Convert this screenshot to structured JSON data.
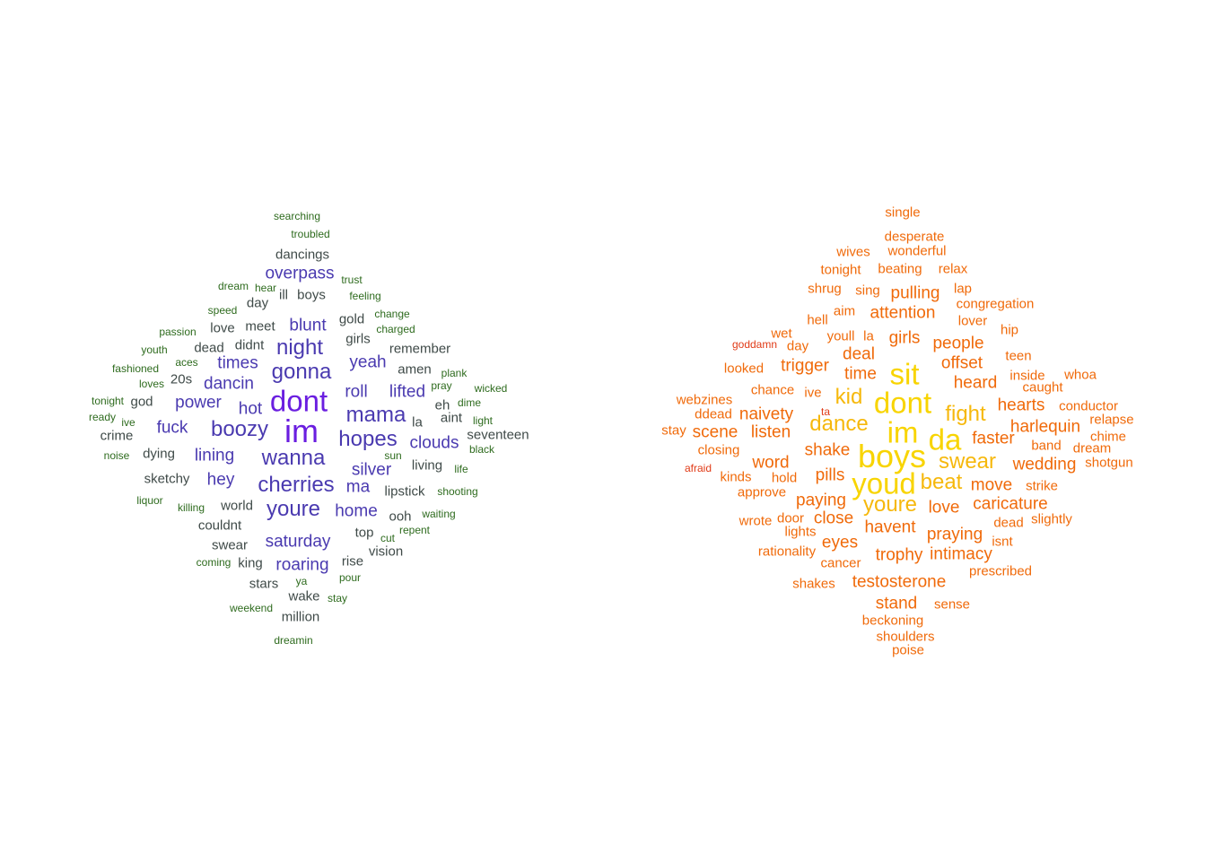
{
  "colors": {
    "background": "#ffffff",
    "left_small": "#2e6b1e",
    "left_medium": "#3f4a48",
    "left_large": "#4a3ab0",
    "left_top": "#6a1ee0",
    "right_small": "#e03a16",
    "right_medium": "#f06a0a",
    "right_large": "#f6b80c",
    "right_top": "#f8d400"
  },
  "clouds": [
    {
      "words": [
        {
          "text": "searching",
          "size": 1
        },
        {
          "text": "troubled",
          "size": 1
        },
        {
          "text": "dancings",
          "size": 2
        },
        {
          "text": "overpass",
          "size": 3
        },
        {
          "text": "trust",
          "size": 1
        },
        {
          "text": "dream",
          "size": 1
        },
        {
          "text": "hear",
          "size": 1
        },
        {
          "text": "ill",
          "size": 2
        },
        {
          "text": "boys",
          "size": 2
        },
        {
          "text": "feeling",
          "size": 1
        },
        {
          "text": "day",
          "size": 2
        },
        {
          "text": "speed",
          "size": 1
        },
        {
          "text": "change",
          "size": 1
        },
        {
          "text": "gold",
          "size": 2
        },
        {
          "text": "charged",
          "size": 1
        },
        {
          "text": "passion",
          "size": 1
        },
        {
          "text": "love",
          "size": 2
        },
        {
          "text": "meet",
          "size": 2
        },
        {
          "text": "blunt",
          "size": 3
        },
        {
          "text": "girls",
          "size": 2
        },
        {
          "text": "youth",
          "size": 1
        },
        {
          "text": "dead",
          "size": 2
        },
        {
          "text": "didnt",
          "size": 2
        },
        {
          "text": "night",
          "size": 4
        },
        {
          "text": "remember",
          "size": 2
        },
        {
          "text": "aces",
          "size": 1
        },
        {
          "text": "yeah",
          "size": 3
        },
        {
          "text": "fashioned",
          "size": 1
        },
        {
          "text": "times",
          "size": 3
        },
        {
          "text": "amen",
          "size": 2
        },
        {
          "text": "plank",
          "size": 1
        },
        {
          "text": "loves",
          "size": 1
        },
        {
          "text": "20s",
          "size": 2
        },
        {
          "text": "gonna",
          "size": 4
        },
        {
          "text": "pray",
          "size": 1
        },
        {
          "text": "wicked",
          "size": 1
        },
        {
          "text": "dancin",
          "size": 3
        },
        {
          "text": "roll",
          "size": 3
        },
        {
          "text": "lifted",
          "size": 3
        },
        {
          "text": "tonight",
          "size": 1
        },
        {
          "text": "god",
          "size": 2
        },
        {
          "text": "dont",
          "size": 5
        },
        {
          "text": "eh",
          "size": 2
        },
        {
          "text": "dime",
          "size": 1
        },
        {
          "text": "power",
          "size": 3
        },
        {
          "text": "hot",
          "size": 3
        },
        {
          "text": "ready",
          "size": 1
        },
        {
          "text": "mama",
          "size": 4
        },
        {
          "text": "la",
          "size": 2
        },
        {
          "text": "aint",
          "size": 2
        },
        {
          "text": "light",
          "size": 1
        },
        {
          "text": "ive",
          "size": 1
        },
        {
          "text": "fuck",
          "size": 3
        },
        {
          "text": "im",
          "size": 6
        },
        {
          "text": "boozy",
          "size": 4
        },
        {
          "text": "crime",
          "size": 2
        },
        {
          "text": "hopes",
          "size": 4
        },
        {
          "text": "seventeen",
          "size": 2
        },
        {
          "text": "clouds",
          "size": 3
        },
        {
          "text": "black",
          "size": 1
        },
        {
          "text": "noise",
          "size": 1
        },
        {
          "text": "dying",
          "size": 2
        },
        {
          "text": "lining",
          "size": 3
        },
        {
          "text": "wanna",
          "size": 4
        },
        {
          "text": "sun",
          "size": 1
        },
        {
          "text": "living",
          "size": 2
        },
        {
          "text": "silver",
          "size": 3
        },
        {
          "text": "life",
          "size": 1
        },
        {
          "text": "sketchy",
          "size": 2
        },
        {
          "text": "hey",
          "size": 3
        },
        {
          "text": "ma",
          "size": 3
        },
        {
          "text": "lipstick",
          "size": 2
        },
        {
          "text": "shooting",
          "size": 1
        },
        {
          "text": "cherries",
          "size": 4
        },
        {
          "text": "liquor",
          "size": 1
        },
        {
          "text": "killing",
          "size": 1
        },
        {
          "text": "world",
          "size": 2
        },
        {
          "text": "youre",
          "size": 4
        },
        {
          "text": "home",
          "size": 3
        },
        {
          "text": "waiting",
          "size": 1
        },
        {
          "text": "ooh",
          "size": 2
        },
        {
          "text": "couldnt",
          "size": 2
        },
        {
          "text": "top",
          "size": 2
        },
        {
          "text": "repent",
          "size": 1
        },
        {
          "text": "cut",
          "size": 1
        },
        {
          "text": "saturday",
          "size": 3
        },
        {
          "text": "swear",
          "size": 2
        },
        {
          "text": "vision",
          "size": 2
        },
        {
          "text": "coming",
          "size": 1
        },
        {
          "text": "king",
          "size": 2
        },
        {
          "text": "roaring",
          "size": 3
        },
        {
          "text": "rise",
          "size": 2
        },
        {
          "text": "ya",
          "size": 1
        },
        {
          "text": "pour",
          "size": 1
        },
        {
          "text": "stars",
          "size": 2
        },
        {
          "text": "wake",
          "size": 2
        },
        {
          "text": "stay",
          "size": 1
        },
        {
          "text": "weekend",
          "size": 1
        },
        {
          "text": "million",
          "size": 2
        },
        {
          "text": "dreamin",
          "size": 1
        }
      ]
    },
    {
      "words": [
        {
          "text": "single",
          "size": 2
        },
        {
          "text": "desperate",
          "size": 2
        },
        {
          "text": "wives",
          "size": 2
        },
        {
          "text": "wonderful",
          "size": 2
        },
        {
          "text": "tonight",
          "size": 2
        },
        {
          "text": "beating",
          "size": 2
        },
        {
          "text": "relax",
          "size": 2
        },
        {
          "text": "shrug",
          "size": 2
        },
        {
          "text": "sing",
          "size": 2
        },
        {
          "text": "pulling",
          "size": 3
        },
        {
          "text": "lap",
          "size": 2
        },
        {
          "text": "congregation",
          "size": 2
        },
        {
          "text": "aim",
          "size": 2
        },
        {
          "text": "attention",
          "size": 3
        },
        {
          "text": "hell",
          "size": 2
        },
        {
          "text": "lover",
          "size": 2
        },
        {
          "text": "wet",
          "size": 2
        },
        {
          "text": "youll",
          "size": 2
        },
        {
          "text": "la",
          "size": 2
        },
        {
          "text": "girls",
          "size": 3
        },
        {
          "text": "hip",
          "size": 2
        },
        {
          "text": "goddamn",
          "size": 1
        },
        {
          "text": "day",
          "size": 2
        },
        {
          "text": "people",
          "size": 3
        },
        {
          "text": "deal",
          "size": 3
        },
        {
          "text": "teen",
          "size": 2
        },
        {
          "text": "offset",
          "size": 3
        },
        {
          "text": "looked",
          "size": 2
        },
        {
          "text": "trigger",
          "size": 3
        },
        {
          "text": "time",
          "size": 3
        },
        {
          "text": "sit",
          "size": 5
        },
        {
          "text": "inside",
          "size": 2
        },
        {
          "text": "whoa",
          "size": 2
        },
        {
          "text": "heard",
          "size": 3
        },
        {
          "text": "caught",
          "size": 2
        },
        {
          "text": "chance",
          "size": 2
        },
        {
          "text": "ive",
          "size": 2
        },
        {
          "text": "kid",
          "size": 4
        },
        {
          "text": "dont",
          "size": 5
        },
        {
          "text": "webzines",
          "size": 2
        },
        {
          "text": "hearts",
          "size": 3
        },
        {
          "text": "conductor",
          "size": 2
        },
        {
          "text": "ddead",
          "size": 2
        },
        {
          "text": "naivety",
          "size": 3
        },
        {
          "text": "ta",
          "size": 1
        },
        {
          "text": "fight",
          "size": 4
        },
        {
          "text": "relapse",
          "size": 2
        },
        {
          "text": "dance",
          "size": 4
        },
        {
          "text": "harlequin",
          "size": 3
        },
        {
          "text": "stay",
          "size": 2
        },
        {
          "text": "scene",
          "size": 3
        },
        {
          "text": "listen",
          "size": 3
        },
        {
          "text": "im",
          "size": 5
        },
        {
          "text": "da",
          "size": 5
        },
        {
          "text": "chime",
          "size": 2
        },
        {
          "text": "faster",
          "size": 3
        },
        {
          "text": "band",
          "size": 2
        },
        {
          "text": "closing",
          "size": 2
        },
        {
          "text": "shake",
          "size": 3
        },
        {
          "text": "boys",
          "size": 6
        },
        {
          "text": "dream",
          "size": 2
        },
        {
          "text": "afraid",
          "size": 1
        },
        {
          "text": "word",
          "size": 3
        },
        {
          "text": "swear",
          "size": 4
        },
        {
          "text": "wedding",
          "size": 3
        },
        {
          "text": "shotgun",
          "size": 2
        },
        {
          "text": "kinds",
          "size": 2
        },
        {
          "text": "hold",
          "size": 2
        },
        {
          "text": "pills",
          "size": 3
        },
        {
          "text": "youd",
          "size": 5
        },
        {
          "text": "beat",
          "size": 4
        },
        {
          "text": "move",
          "size": 3
        },
        {
          "text": "strike",
          "size": 2
        },
        {
          "text": "approve",
          "size": 2
        },
        {
          "text": "paying",
          "size": 3
        },
        {
          "text": "youre",
          "size": 4
        },
        {
          "text": "love",
          "size": 3
        },
        {
          "text": "caricature",
          "size": 3
        },
        {
          "text": "wrote",
          "size": 2
        },
        {
          "text": "door",
          "size": 2
        },
        {
          "text": "close",
          "size": 3
        },
        {
          "text": "dead",
          "size": 2
        },
        {
          "text": "slightly",
          "size": 2
        },
        {
          "text": "lights",
          "size": 2
        },
        {
          "text": "havent",
          "size": 3
        },
        {
          "text": "praying",
          "size": 3
        },
        {
          "text": "eyes",
          "size": 3
        },
        {
          "text": "isnt",
          "size": 2
        },
        {
          "text": "rationality",
          "size": 2
        },
        {
          "text": "trophy",
          "size": 3
        },
        {
          "text": "intimacy",
          "size": 3
        },
        {
          "text": "cancer",
          "size": 2
        },
        {
          "text": "prescribed",
          "size": 2
        },
        {
          "text": "shakes",
          "size": 2
        },
        {
          "text": "testosterone",
          "size": 3
        },
        {
          "text": "stand",
          "size": 3
        },
        {
          "text": "sense",
          "size": 2
        },
        {
          "text": "beckoning",
          "size": 2
        },
        {
          "text": "shoulders",
          "size": 2
        },
        {
          "text": "poise",
          "size": 2
        }
      ]
    }
  ]
}
